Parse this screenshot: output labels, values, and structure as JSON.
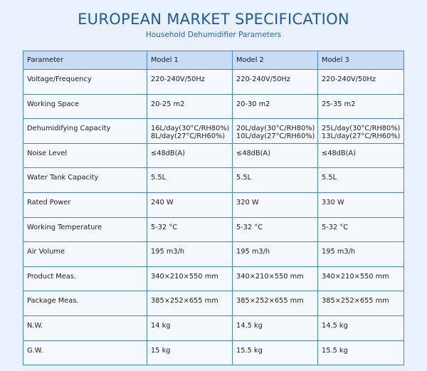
{
  "header": {
    "title": "EUROPEAN MARKET SPECIFICATION",
    "subtitle": "Household Dehumidifier Parameters"
  },
  "table": {
    "columns": [
      "Parameter",
      "Model 1",
      "Model 2",
      "Model 3"
    ],
    "rows": [
      [
        "Voltage/Frequency",
        "220-240V/50Hz",
        "220-240V/50Hz",
        "220-240V/50Hz"
      ],
      [
        "Working Space",
        "20-25 m2",
        "20-30 m2",
        "25-35 m2"
      ],
      [
        "Dehumidifying Capacity",
        "16L/day(30°C/RH80%)\n8L/day(27°C/RH60%)",
        "20L/day(30°C/RH80%)\n10L/day(27°C/RH60%)",
        "25L/day(30°C/RH80%)\n13L/day(27°C/RH60%)"
      ],
      [
        "Noise Level",
        "≤48dB(A)",
        "≤48dB(A)",
        "≤48dB(A)"
      ],
      [
        "Water Tank Capacity",
        "5.5L",
        "5.5L",
        "5.5L"
      ],
      [
        "Rated Power",
        "240 W",
        "320 W",
        "330 W"
      ],
      [
        "Working Temperature",
        "5-32 °C",
        "5-32 °C",
        "5-32 °C"
      ],
      [
        "Air Volume",
        "195 m3/h",
        "195 m3/h",
        "195 m3/h"
      ],
      [
        "Product Meas.",
        "340×210×550 mm",
        "340×210×550 mm",
        "340×210×550 mm"
      ],
      [
        "Package Meas.",
        "385×252×655 mm",
        "385×252×655 mm",
        "385×252×655 mm"
      ],
      [
        "N.W.",
        "14 kg",
        "14.5 kg",
        "14.5 kg"
      ],
      [
        "G.W.",
        "15 kg",
        "15.5 kg",
        "15.5 kg"
      ]
    ]
  }
}
